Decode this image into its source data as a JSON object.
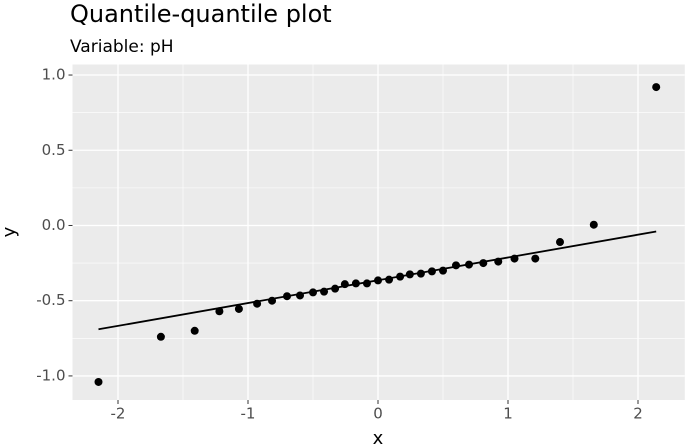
{
  "chart_data": {
    "type": "scatter",
    "title": "Quantile-quantile plot",
    "subtitle": "Variable: pH",
    "x_label": "x",
    "y_label": "y",
    "color": "#000000",
    "x": [
      -2.15,
      -1.67,
      -1.41,
      -1.22,
      -1.07,
      -0.93,
      -0.815,
      -0.7,
      -0.6,
      -0.5,
      -0.415,
      -0.33,
      -0.255,
      -0.17,
      -0.085,
      0,
      0.085,
      0.17,
      0.245,
      0.33,
      0.415,
      0.5,
      0.6,
      0.7,
      0.81,
      0.925,
      1.05,
      1.21,
      1.4,
      1.66,
      2.14
    ],
    "y": [
      -1.04,
      -0.74,
      -0.7,
      -0.57,
      -0.555,
      -0.52,
      -0.5,
      -0.47,
      -0.465,
      -0.445,
      -0.44,
      -0.42,
      -0.39,
      -0.385,
      -0.385,
      -0.365,
      -0.36,
      -0.34,
      -0.325,
      -0.32,
      -0.305,
      -0.3,
      -0.265,
      -0.26,
      -0.25,
      -0.24,
      -0.22,
      -0.22,
      -0.11,
      0.005,
      0.92
    ],
    "line": {
      "x": [
        -2.15,
        2.14
      ],
      "y": [
        -0.69,
        -0.04
      ],
      "color": "#000000"
    },
    "xlim": [
      -2.35,
      2.36
    ],
    "ylim": [
      -1.16,
      1.07
    ],
    "xticks": [
      -2,
      -1,
      0,
      1,
      2
    ],
    "yticks": [
      {
        "value": -1,
        "label": "-1.0"
      },
      {
        "value": -0.5,
        "label": "-0.5"
      },
      {
        "value": 0,
        "label": "0.0"
      },
      {
        "value": 0.5,
        "label": "0.5"
      },
      {
        "value": 1,
        "label": "1.0"
      }
    ],
    "xminorticks": [
      -1.5,
      -0.5,
      0.5,
      1.5
    ],
    "yminorticks": [
      -0.75,
      -0.25,
      0.25,
      0.75
    ],
    "grid": true,
    "panel_color": "#ebebeb"
  }
}
